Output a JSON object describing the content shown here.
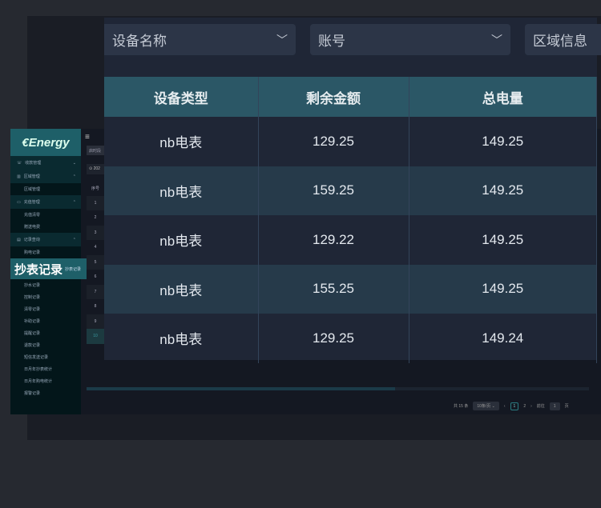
{
  "brand": "€Energy",
  "highlight": "抄表记录",
  "menu": [
    {
      "type": "g",
      "icon": "phone-icon",
      "label": "收款管理",
      "chev": "⌄"
    },
    {
      "type": "g",
      "icon": "building-icon",
      "label": "区域管理",
      "chev": "⌃"
    },
    {
      "type": "i",
      "label": "区域管理"
    },
    {
      "type": "g",
      "icon": "card-icon",
      "label": "充值管理",
      "chev": "⌃"
    },
    {
      "type": "i",
      "label": "充值清零"
    },
    {
      "type": "i",
      "label": "赠送电费"
    },
    {
      "type": "g",
      "icon": "document-icon",
      "label": "记录查询",
      "chev": "⌃"
    },
    {
      "type": "i",
      "label": "购电记录"
    },
    {
      "type": "i",
      "label": "抄表记录"
    },
    {
      "type": "i",
      "label": "抄水记录"
    },
    {
      "type": "i",
      "label": "控制记录"
    },
    {
      "type": "i",
      "label": "清零记录"
    },
    {
      "type": "i",
      "label": "补助记录"
    },
    {
      "type": "i",
      "label": "提醒记录"
    },
    {
      "type": "i",
      "label": "退款记录"
    },
    {
      "type": "i",
      "label": "短信发送记录"
    },
    {
      "type": "i",
      "label": "日月年抄表统计"
    },
    {
      "type": "i",
      "label": "日月年购电统计"
    },
    {
      "type": "i",
      "label": "报警记录"
    }
  ],
  "tab": "启时段",
  "date": "⊙ 202",
  "index": [
    "序号",
    "1",
    "2",
    "3",
    "4",
    "5",
    "6",
    "7",
    "8",
    "9",
    "10"
  ],
  "pager": {
    "total": "共 15 条",
    "size": "10条/页 ⌄",
    "prev": "‹",
    "p1": "1",
    "p2": "2",
    "next": "›",
    "goto": "前往",
    "page": "1",
    "unit": "页"
  },
  "filters": [
    "设备名称",
    "账号",
    "区域信息"
  ],
  "columns": [
    "设备类型",
    "剩余金额",
    "总电量"
  ],
  "rows": [
    [
      "nb电表",
      "129.25",
      "149.25"
    ],
    [
      "nb电表",
      "159.25",
      "149.25"
    ],
    [
      "nb电表",
      "129.22",
      "149.25"
    ],
    [
      "nb电表",
      "155.25",
      "149.25"
    ],
    [
      "nb电表",
      "129.25",
      "149.24"
    ]
  ]
}
